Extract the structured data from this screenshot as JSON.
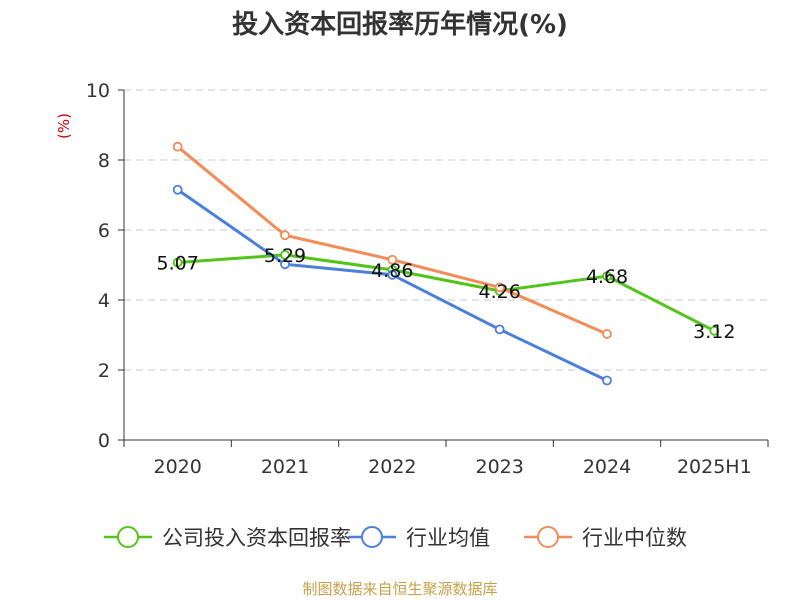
{
  "chart_data": {
    "type": "line",
    "title": "投入资本回报率历年情况(%)",
    "ylabel": "(%)",
    "xlabel": "",
    "categories": [
      "2020",
      "2021",
      "2022",
      "2023",
      "2024",
      "2025H1"
    ],
    "ylim": [
      0,
      10
    ],
    "yticks": [
      0,
      2,
      4,
      6,
      8,
      10
    ],
    "grid": true,
    "legend_position": "bottom",
    "series": [
      {
        "name": "公司投入资本回报率",
        "color": "#52c41a",
        "values": [
          5.07,
          5.29,
          4.86,
          4.26,
          4.68,
          3.12
        ],
        "data_labels": [
          "5.07",
          "5.29",
          "4.86",
          "4.26",
          "4.68",
          "3.12"
        ]
      },
      {
        "name": "行业均值",
        "color": "#4a7fdb",
        "values": [
          7.15,
          5.02,
          4.72,
          3.16,
          1.7,
          null
        ]
      },
      {
        "name": "行业中位数",
        "color": "#f28d57",
        "values": [
          8.38,
          5.85,
          5.15,
          4.36,
          3.03,
          null
        ]
      }
    ]
  },
  "source": "制图数据来自恒生聚源数据库"
}
